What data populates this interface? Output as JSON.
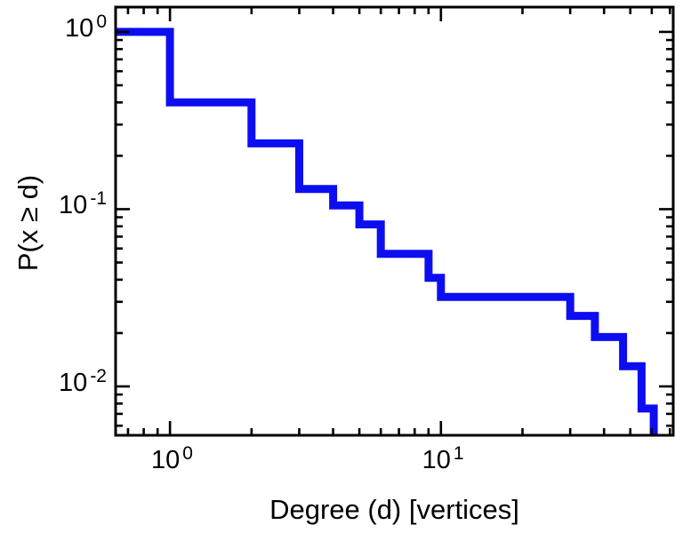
{
  "figure": {
    "background": "#ffffff"
  },
  "chart_data": {
    "type": "line",
    "subtype": "step_ccdf_loglog",
    "title": "",
    "xlabel": "Degree (d) [vertices]",
    "ylabel": "P(x ≥ d)",
    "x_scale": "log",
    "y_scale": "log",
    "x_range": [
      0.63,
      72
    ],
    "y_range": [
      0.0053,
      1.38
    ],
    "grid": false,
    "legend": false,
    "line_color": "#0d0df2",
    "line_width": 9,
    "axes_color": "#000000",
    "x_axis": {
      "major_ticks": [
        1,
        10
      ],
      "major_labels": [
        {
          "base": "10",
          "exp": "0"
        },
        {
          "base": "10",
          "exp": "1"
        }
      ],
      "minor_ticks": [
        0.7,
        0.8,
        0.9,
        2,
        3,
        4,
        5,
        6,
        7,
        8,
        9,
        20,
        30,
        40,
        50,
        60,
        70
      ]
    },
    "y_axis": {
      "major_ticks": [
        1,
        0.1,
        0.01
      ],
      "major_labels": [
        {
          "base": "10",
          "exp": "0"
        },
        {
          "base": "10",
          "exp": "-1"
        },
        {
          "base": "10",
          "exp": "-2"
        }
      ],
      "minor_ticks": [
        0.9,
        0.8,
        0.7,
        0.6,
        0.5,
        0.4,
        0.3,
        0.2,
        0.09,
        0.08,
        0.07,
        0.06,
        0.05,
        0.04,
        0.03,
        0.02,
        0.009,
        0.008,
        0.007,
        0.006
      ]
    },
    "ccdf_segments": [
      [
        0.63,
        1,
        1.0
      ],
      [
        1,
        2,
        0.4
      ],
      [
        2,
        3,
        0.235
      ],
      [
        3,
        4,
        0.13
      ],
      [
        4,
        5,
        0.105
      ],
      [
        5,
        6,
        0.082
      ],
      [
        6,
        9,
        0.056
      ],
      [
        9,
        10,
        0.041
      ],
      [
        10,
        30,
        0.032
      ],
      [
        30,
        37,
        0.025
      ],
      [
        37,
        47,
        0.019
      ],
      [
        47,
        55,
        0.013
      ],
      [
        55,
        61,
        0.0075
      ]
    ],
    "tail_drop_x": 61
  }
}
